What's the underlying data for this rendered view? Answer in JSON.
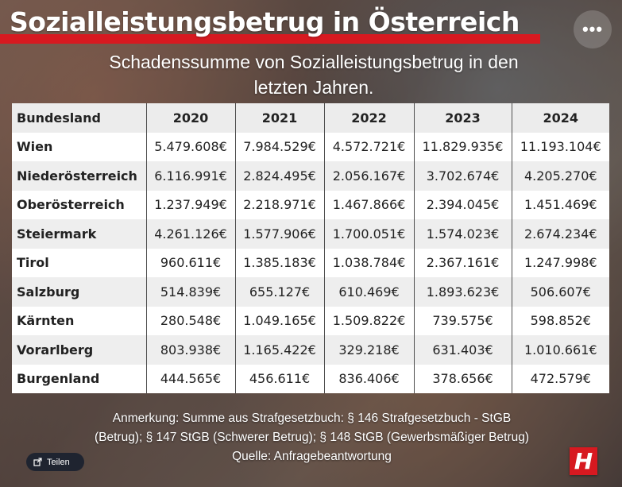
{
  "header": {
    "title": "Sozialleistungsbetrug in Österreich",
    "subtitle_line1": "Schadenssumme von Sozialleistungsbetrug in den",
    "subtitle_line2": "letzten Jahren.",
    "accent_color": "#d71920"
  },
  "more_button": {
    "label": "•••",
    "icon": "more-dots-icon"
  },
  "table": {
    "headers": [
      "Bundesland",
      "2020",
      "2021",
      "2022",
      "2023",
      "2024"
    ],
    "rows": [
      [
        "Wien",
        "5.479.608€",
        "7.984.529€",
        "4.572.721€",
        "11.829.935€",
        "11.193.104€"
      ],
      [
        "Niederösterreich",
        "6.116.991€",
        "2.824.495€",
        "2.056.167€",
        "3.702.674€",
        "4.205.270€"
      ],
      [
        "Oberösterreich",
        "1.237.949€",
        "2.218.971€",
        "1.467.866€",
        "2.394.045€",
        "1.451.469€"
      ],
      [
        "Steiermark",
        "4.261.126€",
        "1.577.906€",
        "1.700.051€",
        "1.574.023€",
        "2.674.234€"
      ],
      [
        "Tirol",
        "960.611€",
        "1.385.183€",
        "1.038.784€",
        "2.367.161€",
        "1.247.998€"
      ],
      [
        "Salzburg",
        "514.839€",
        "655.127€",
        "610.469€",
        "1.893.623€",
        "506.607€"
      ],
      [
        "Kärnten",
        "280.548€",
        "1.049.165€",
        "1.509.822€",
        "739.575€",
        "598.852€"
      ],
      [
        "Vorarlberg",
        "803.938€",
        "1.165.422€",
        "329.218€",
        "631.403€",
        "1.010.661€"
      ],
      [
        "Burgenland",
        "444.565€",
        "456.611€",
        "836.406€",
        "378.656€",
        "472.579€"
      ]
    ]
  },
  "note": {
    "line1": "Anmerkung: Summe aus Strafgesetzbuch: § 146 Strafgesetzbuch - StGB",
    "line2": "(Betrug); § 147 StGB (Schwerer Betrug); § 148 StGB (Gewerbsmäßiger Betrug)",
    "line3": "Quelle: Anfragebeantwortung"
  },
  "share_button": {
    "label": "Teilen",
    "icon": "share-icon"
  },
  "brand": {
    "letter": "H",
    "color": "#d71920"
  }
}
